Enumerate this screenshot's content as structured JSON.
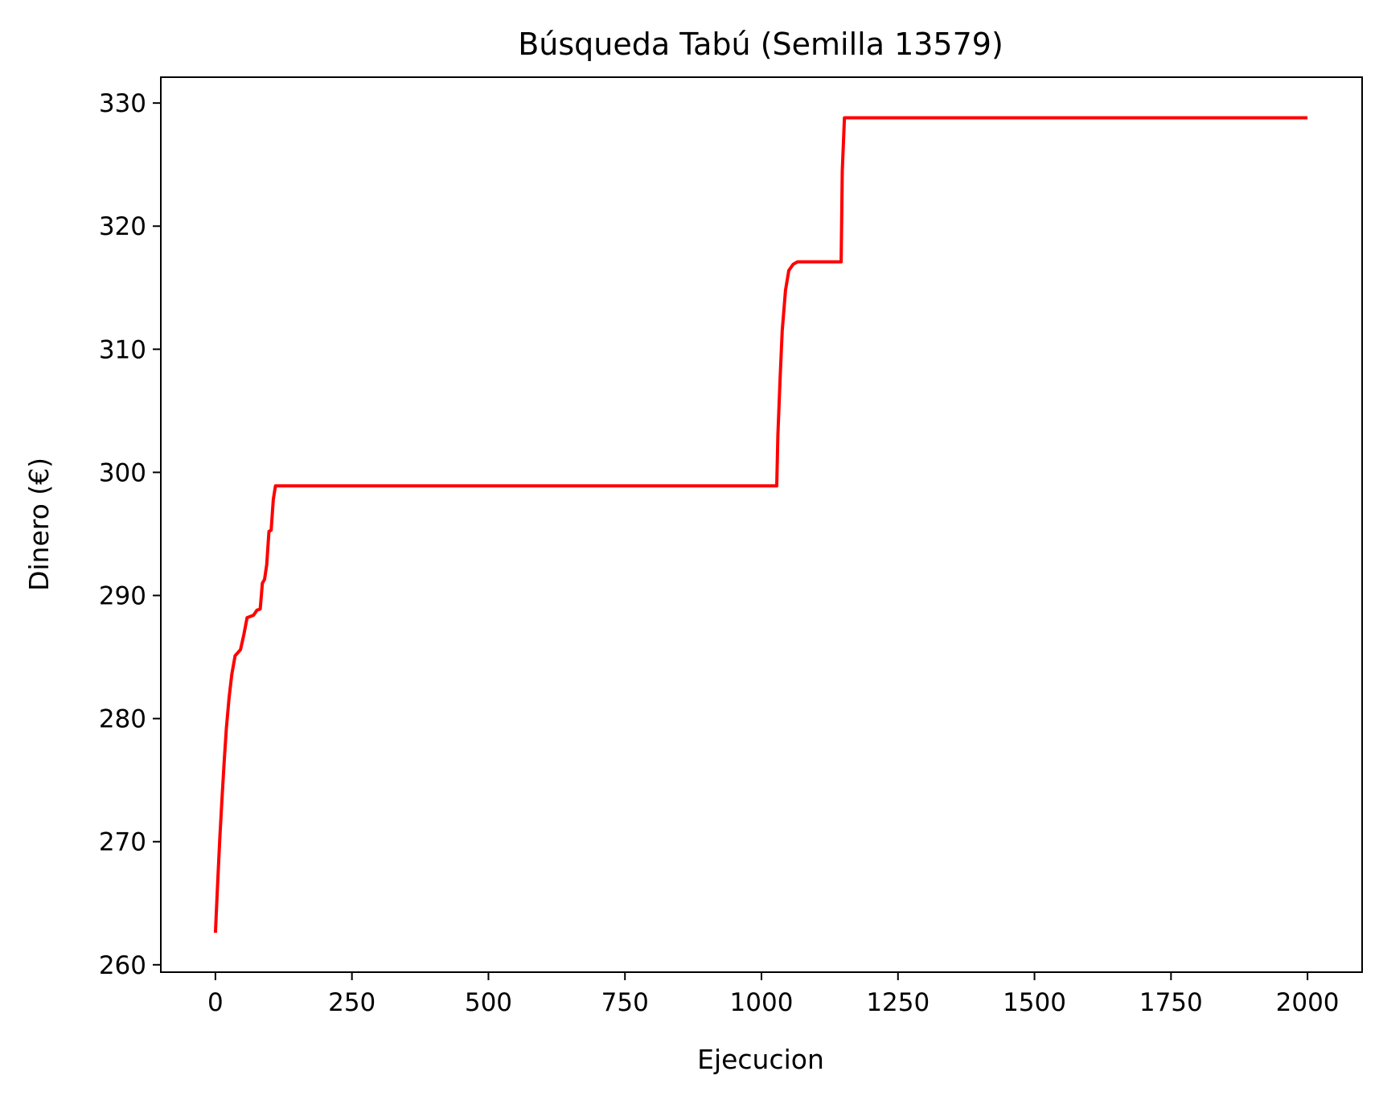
{
  "chart_data": {
    "type": "line",
    "title": "Búsqueda Tabú (Semilla 13579)",
    "xlabel": "Ejecucion",
    "ylabel": "Dinero (€)",
    "xlim": [
      -100,
      2100
    ],
    "ylim": [
      259.4,
      332.1
    ],
    "xticks": [
      0,
      250,
      500,
      750,
      1000,
      1250,
      1500,
      1750,
      2000
    ],
    "xtick_labels": [
      "0",
      "250",
      "500",
      "750",
      "1000",
      "1250",
      "1500",
      "1750",
      "2000"
    ],
    "yticks": [
      260,
      270,
      280,
      290,
      300,
      310,
      320,
      330
    ],
    "ytick_labels": [
      "260",
      "270",
      "280",
      "290",
      "300",
      "310",
      "320",
      "330"
    ],
    "grid": false,
    "legend": false,
    "series": [
      {
        "color": "#ff0000",
        "points": [
          [
            0,
            262.6
          ],
          [
            4,
            266.5
          ],
          [
            8,
            270.2
          ],
          [
            12,
            273.5
          ],
          [
            16,
            276.5
          ],
          [
            20,
            279.2
          ],
          [
            25,
            281.7
          ],
          [
            30,
            283.6
          ],
          [
            36,
            285.1
          ],
          [
            40,
            285.3
          ],
          [
            46,
            285.6
          ],
          [
            52,
            286.8
          ],
          [
            58,
            288.2
          ],
          [
            64,
            288.3
          ],
          [
            70,
            288.4
          ],
          [
            76,
            288.8
          ],
          [
            82,
            288.9
          ],
          [
            86,
            291.0
          ],
          [
            90,
            291.3
          ],
          [
            94,
            292.5
          ],
          [
            98,
            295.2
          ],
          [
            102,
            295.3
          ],
          [
            106,
            297.8
          ],
          [
            110,
            298.9
          ],
          [
            300,
            298.9
          ],
          [
            600,
            298.9
          ],
          [
            900,
            298.9
          ],
          [
            1028,
            298.9
          ],
          [
            1030,
            303.0
          ],
          [
            1034,
            307.5
          ],
          [
            1038,
            311.5
          ],
          [
            1044,
            314.8
          ],
          [
            1050,
            316.4
          ],
          [
            1058,
            316.9
          ],
          [
            1066,
            317.1
          ],
          [
            1100,
            317.1
          ],
          [
            1140,
            317.1
          ],
          [
            1146,
            317.1
          ],
          [
            1148,
            324.5
          ],
          [
            1152,
            328.8
          ],
          [
            1400,
            328.8
          ],
          [
            1700,
            328.8
          ],
          [
            2000,
            328.8
          ]
        ]
      }
    ]
  }
}
